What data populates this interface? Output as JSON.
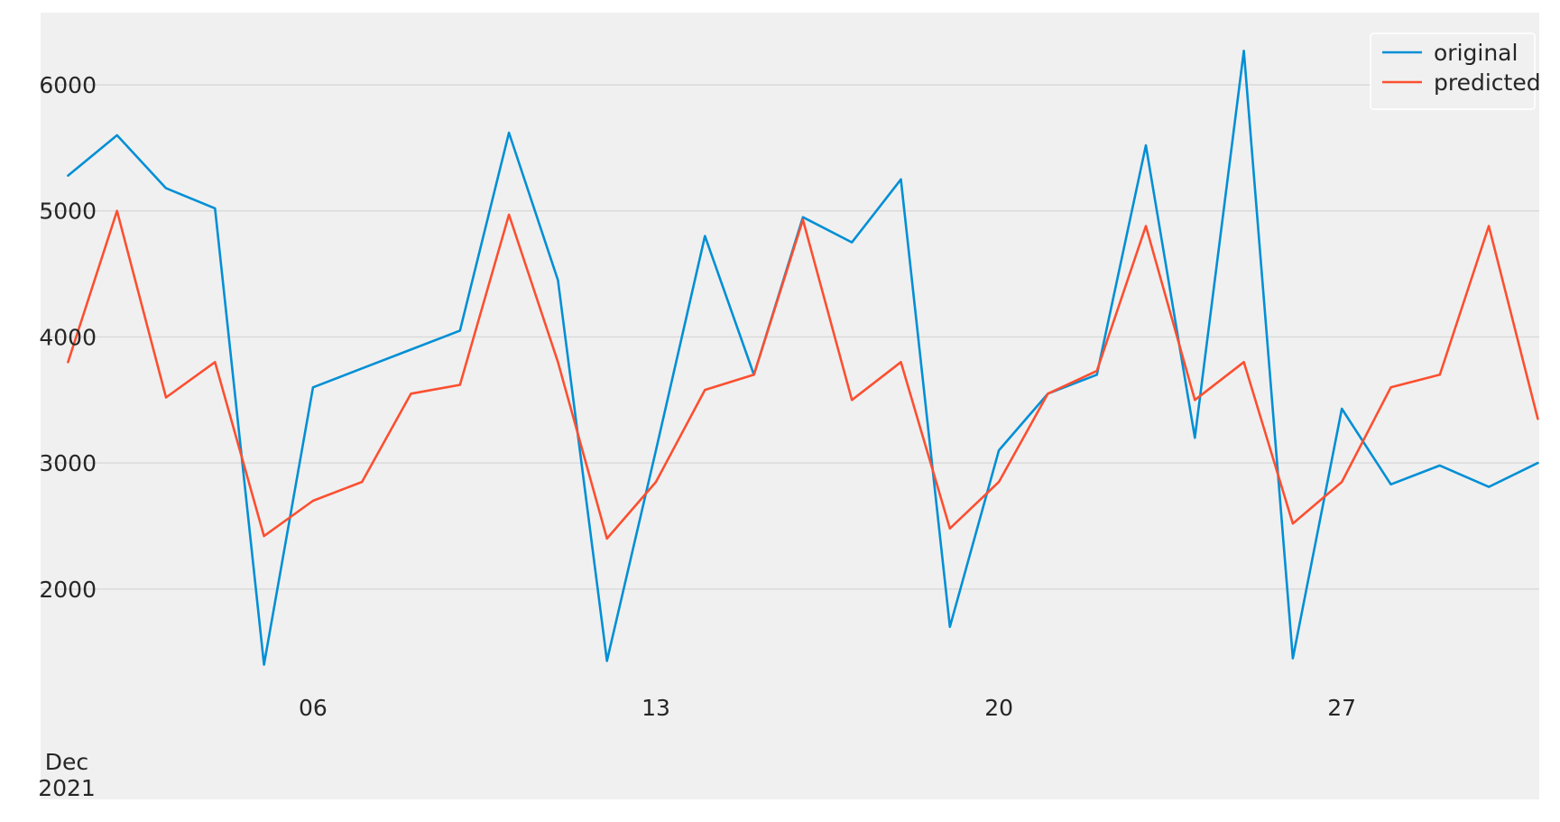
{
  "chart_data": {
    "type": "line",
    "title": "",
    "xlabel": "",
    "ylabel": "",
    "x_unit": "day of month",
    "x_period_label": [
      "Dec",
      "2021"
    ],
    "x": [
      1,
      2,
      3,
      4,
      5,
      6,
      7,
      8,
      9,
      10,
      11,
      12,
      13,
      14,
      15,
      16,
      17,
      18,
      19,
      20,
      21,
      22,
      23,
      24,
      25,
      26,
      27,
      28,
      29,
      30,
      31
    ],
    "series": [
      {
        "name": "original",
        "color": "#008fd5",
        "values": [
          5280,
          5600,
          5180,
          5020,
          1400,
          3600,
          3750,
          3900,
          4050,
          5620,
          4450,
          1430,
          3100,
          4800,
          3700,
          4950,
          4750,
          5250,
          1700,
          3100,
          3550,
          3700,
          5520,
          3200,
          6270,
          1450,
          3430,
          2830,
          2980,
          2810,
          3000
        ]
      },
      {
        "name": "predicted",
        "color": "#fc4f30",
        "values": [
          3800,
          5000,
          3520,
          3800,
          2420,
          2700,
          2850,
          3550,
          3620,
          4970,
          3800,
          2400,
          2850,
          3580,
          3700,
          4930,
          3500,
          3800,
          2480,
          2850,
          3550,
          3730,
          4880,
          3500,
          3800,
          2520,
          2850,
          3600,
          3700,
          4880,
          3350
        ]
      }
    ],
    "x_ticks": [
      {
        "day": 6,
        "label": "06"
      },
      {
        "day": 13,
        "label": "13"
      },
      {
        "day": 20,
        "label": "20"
      },
      {
        "day": 27,
        "label": "27"
      }
    ],
    "y_ticks": [
      {
        "value": 2000,
        "label": "2000"
      },
      {
        "value": 3000,
        "label": "3000"
      },
      {
        "value": 4000,
        "label": "4000"
      },
      {
        "value": 5000,
        "label": "5000"
      },
      {
        "value": 6000,
        "label": "6000"
      }
    ],
    "ylim": [
      330,
      6600
    ],
    "grid": true,
    "legend": {
      "position": "top-right",
      "entries": [
        "original",
        "predicted"
      ]
    },
    "colors": {
      "plot_background": "#f0f0f0",
      "figure_margin": "#ffffff",
      "gridline": "#d9d9d9",
      "text": "#262626",
      "legend_border": "#ffffff"
    }
  }
}
